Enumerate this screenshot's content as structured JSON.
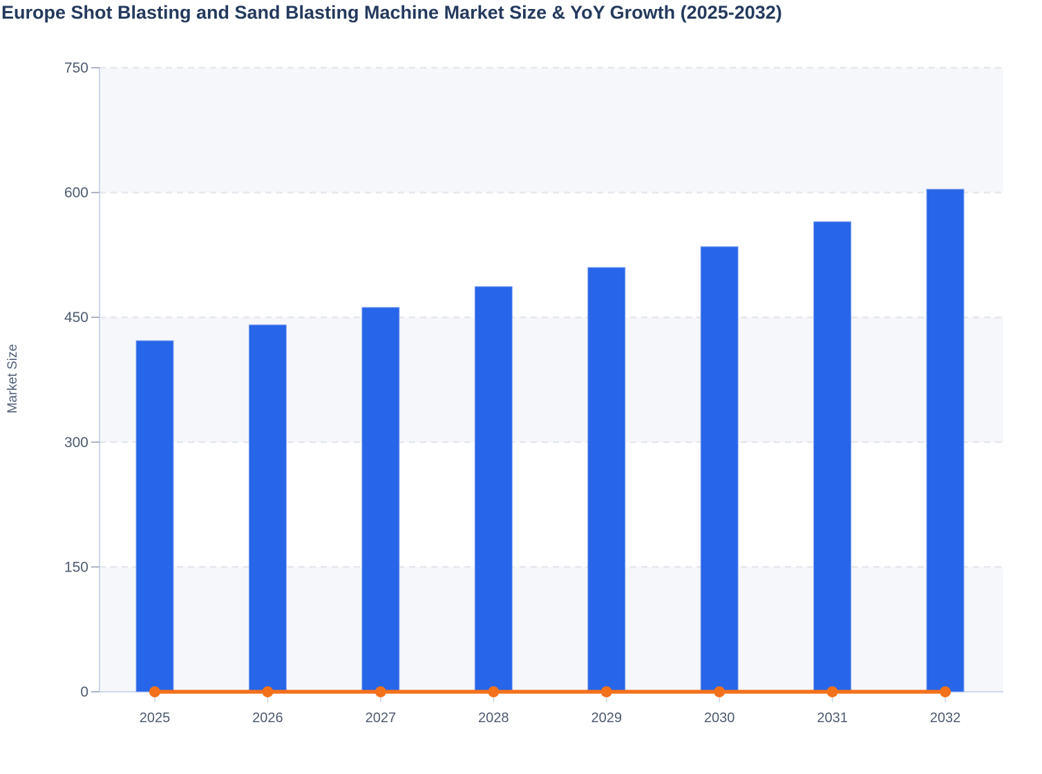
{
  "title": "Europe Shot Blasting and Sand Blasting Machine Market Size & YoY Growth (2025-2032)",
  "y_axis": {
    "label": "Market Size",
    "ticks": [
      0,
      150,
      300,
      450,
      600,
      750
    ]
  },
  "colors": {
    "bar_fill": "#2765e9",
    "bar_border": "#8aa9f0",
    "line": "#f4711c",
    "band": "#f6f7fa",
    "gridline": "#e4e7ec",
    "axis_line": "#c9d2ec",
    "y_tick_mark": "#97a0b4",
    "x_tick_mark": "#ccd4e8",
    "title_text": "#243a5e",
    "tick_text": "#4d5a70"
  },
  "chart_data": {
    "type": "bar",
    "categories": [
      "2025",
      "2026",
      "2027",
      "2028",
      "2029",
      "2030",
      "2031",
      "2032"
    ],
    "series": [
      {
        "name": "Market Size",
        "type": "bar",
        "values": [
          422,
          441,
          462,
          487,
          510,
          535,
          565,
          604
        ]
      },
      {
        "name": "YoY Growth",
        "type": "line",
        "values": [
          0,
          0,
          0,
          0,
          0,
          0,
          0,
          0
        ]
      }
    ],
    "title": "Europe Shot Blasting and Sand Blasting Machine Market Size & YoY Growth (2025-2032)",
    "xlabel": "",
    "ylabel": "Market Size",
    "ylim": [
      0,
      750
    ],
    "grid": "horizontal-dashed",
    "plot_bands": "alternating-horizontal-stripes",
    "legend_position": "none"
  }
}
